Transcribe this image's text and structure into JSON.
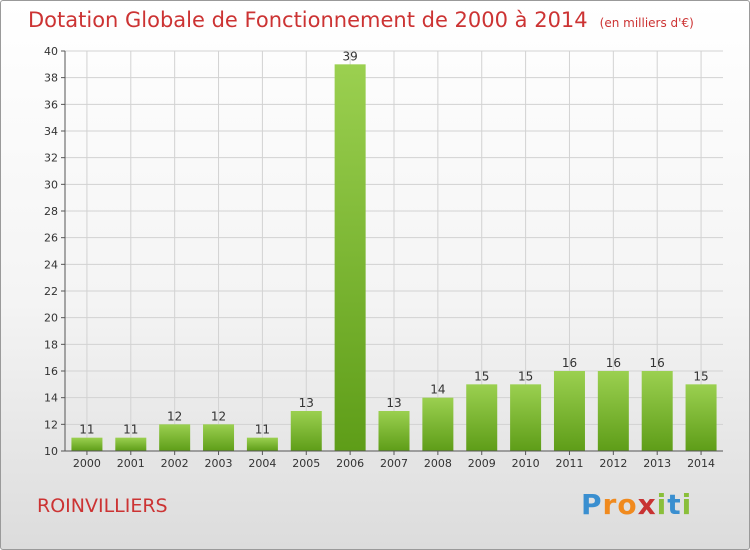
{
  "chart_data": {
    "type": "bar",
    "title": "Dotation Globale de Fonctionnement de 2000 à 2014",
    "subtitle": "(en milliers d'€)",
    "categories": [
      "2000",
      "2001",
      "2002",
      "2003",
      "2004",
      "2005",
      "2006",
      "2007",
      "2008",
      "2009",
      "2010",
      "2011",
      "2012",
      "2013",
      "2014"
    ],
    "values": [
      11,
      11,
      12,
      12,
      11,
      13,
      39,
      13,
      14,
      15,
      15,
      16,
      16,
      16,
      15
    ],
    "ylim": [
      10,
      40
    ],
    "yticks": [
      10,
      12,
      14,
      16,
      18,
      20,
      22,
      24,
      26,
      28,
      30,
      32,
      34,
      36,
      38,
      40
    ],
    "xlabel": "",
    "ylabel": "",
    "grid": true
  },
  "commune": "ROINVILLIERS",
  "logo": {
    "letters": [
      "P",
      "r",
      "o",
      "x",
      "i",
      "t",
      "i"
    ],
    "colors": [
      "#3a8fd0",
      "#f08a1e",
      "#f08a1e",
      "#c83232",
      "#8abf3a",
      "#3a8fd0",
      "#8abf3a"
    ]
  },
  "colors": {
    "bar_light": "#9bd050",
    "bar_dark": "#5e9d18",
    "title": "#cc3333",
    "grid": "#d2d2d2"
  }
}
